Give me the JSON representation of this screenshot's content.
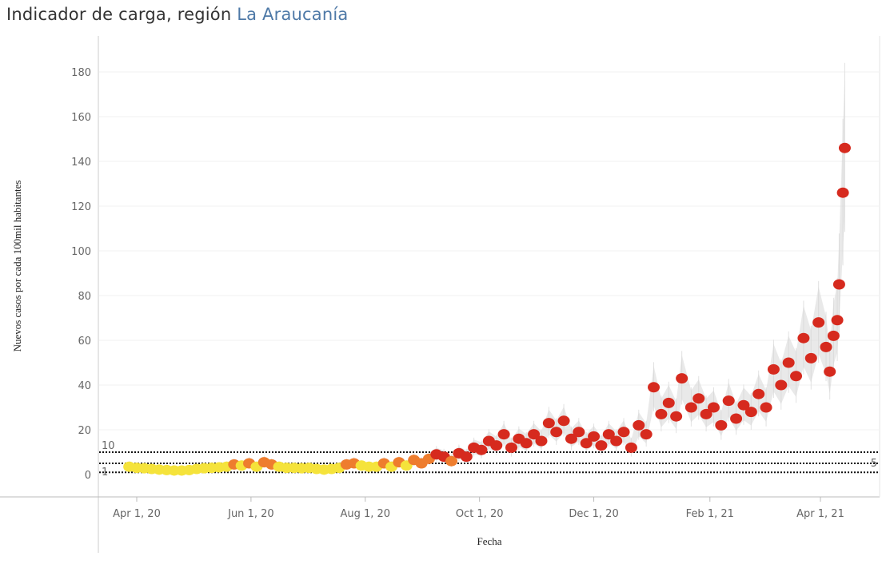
{
  "header": {
    "title_prefix": "Indicador de carga, región ",
    "region": "La Araucanía"
  },
  "chart_data": {
    "type": "scatter",
    "title": "Indicador de carga, región La Araucanía",
    "xlabel": "Fecha",
    "ylabel": "Nuevos casos por cada 100mil habitantes",
    "ylim": [
      -10,
      190
    ],
    "yticks": [
      0,
      20,
      40,
      60,
      80,
      100,
      120,
      140,
      160,
      180
    ],
    "xlim": [
      "2020-03-10",
      "2021-04-30"
    ],
    "xticks": [
      {
        "date": "2020-04-01",
        "label": "Apr 1, 20"
      },
      {
        "date": "2020-06-01",
        "label": "Jun 1, 20"
      },
      {
        "date": "2020-08-01",
        "label": "Aug 1, 20"
      },
      {
        "date": "2020-10-01",
        "label": "Oct 1, 20"
      },
      {
        "date": "2020-12-01",
        "label": "Dec 1, 20"
      },
      {
        "date": "2021-02-01",
        "label": "Feb 1, 21"
      },
      {
        "date": "2021-04-01",
        "label": "Apr 1, 21"
      }
    ],
    "grid": true,
    "reference_lines": [
      {
        "value": 10,
        "label": "10",
        "side": "left"
      },
      {
        "value": 5,
        "label": "5",
        "side": "right"
      },
      {
        "value": 1,
        "label": "1",
        "side": "left"
      }
    ],
    "color_scale": {
      "low": "#f5e33b",
      "mid": "#ee7d2e",
      "high": "#d62a1e",
      "band": "#d3d3d3"
    },
    "points": [
      [
        "2020-03-28",
        3.5
      ],
      [
        "2020-04-01",
        3
      ],
      [
        "2020-04-05",
        2.8
      ],
      [
        "2020-04-09",
        2.5
      ],
      [
        "2020-04-13",
        2.2
      ],
      [
        "2020-04-17",
        2
      ],
      [
        "2020-04-21",
        1.8
      ],
      [
        "2020-04-25",
        1.8
      ],
      [
        "2020-04-29",
        2
      ],
      [
        "2020-05-03",
        2.5
      ],
      [
        "2020-05-07",
        2.8
      ],
      [
        "2020-05-11",
        3
      ],
      [
        "2020-05-15",
        3.2
      ],
      [
        "2020-05-19",
        3.5
      ],
      [
        "2020-05-23",
        4.5
      ],
      [
        "2020-05-27",
        4
      ],
      [
        "2020-05-31",
        5
      ],
      [
        "2020-06-04",
        3.5
      ],
      [
        "2020-06-08",
        5.5
      ],
      [
        "2020-06-12",
        4.5
      ],
      [
        "2020-06-16",
        3.5
      ],
      [
        "2020-06-20",
        3
      ],
      [
        "2020-06-24",
        3
      ],
      [
        "2020-06-28",
        2.8
      ],
      [
        "2020-07-02",
        3
      ],
      [
        "2020-07-06",
        2.5
      ],
      [
        "2020-07-10",
        2.2
      ],
      [
        "2020-07-14",
        2.5
      ],
      [
        "2020-07-18",
        3
      ],
      [
        "2020-07-22",
        4.5
      ],
      [
        "2020-07-26",
        5
      ],
      [
        "2020-07-30",
        4
      ],
      [
        "2020-08-03",
        3.5
      ],
      [
        "2020-08-07",
        3.5
      ],
      [
        "2020-08-11",
        5
      ],
      [
        "2020-08-15",
        3.5
      ],
      [
        "2020-08-19",
        5.5
      ],
      [
        "2020-08-23",
        4
      ],
      [
        "2020-08-27",
        6.5
      ],
      [
        "2020-08-31",
        5
      ],
      [
        "2020-09-04",
        7
      ],
      [
        "2020-09-08",
        9
      ],
      [
        "2020-09-12",
        8
      ],
      [
        "2020-09-16",
        6
      ],
      [
        "2020-09-20",
        9.5
      ],
      [
        "2020-09-24",
        8
      ],
      [
        "2020-09-28",
        12
      ],
      [
        "2020-10-02",
        11
      ],
      [
        "2020-10-06",
        15
      ],
      [
        "2020-10-10",
        13
      ],
      [
        "2020-10-14",
        18
      ],
      [
        "2020-10-18",
        12
      ],
      [
        "2020-10-22",
        16
      ],
      [
        "2020-10-26",
        14
      ],
      [
        "2020-10-30",
        18
      ],
      [
        "2020-11-03",
        15
      ],
      [
        "2020-11-07",
        23
      ],
      [
        "2020-11-11",
        19
      ],
      [
        "2020-11-15",
        24
      ],
      [
        "2020-11-19",
        16
      ],
      [
        "2020-11-23",
        19
      ],
      [
        "2020-11-27",
        14
      ],
      [
        "2020-12-01",
        17
      ],
      [
        "2020-12-05",
        13
      ],
      [
        "2020-12-09",
        18
      ],
      [
        "2020-12-13",
        15
      ],
      [
        "2020-12-17",
        19
      ],
      [
        "2020-12-21",
        12
      ],
      [
        "2020-12-25",
        22
      ],
      [
        "2020-12-29",
        18
      ],
      [
        "2021-01-02",
        39
      ],
      [
        "2021-01-06",
        27
      ],
      [
        "2021-01-10",
        32
      ],
      [
        "2021-01-14",
        26
      ],
      [
        "2021-01-17",
        43
      ],
      [
        "2021-01-22",
        30
      ],
      [
        "2021-01-26",
        34
      ],
      [
        "2021-01-30",
        27
      ],
      [
        "2021-02-03",
        30
      ],
      [
        "2021-02-07",
        22
      ],
      [
        "2021-02-11",
        33
      ],
      [
        "2021-02-15",
        25
      ],
      [
        "2021-02-19",
        31
      ],
      [
        "2021-02-23",
        28
      ],
      [
        "2021-02-27",
        36
      ],
      [
        "2021-03-03",
        30
      ],
      [
        "2021-03-07",
        47
      ],
      [
        "2021-03-11",
        40
      ],
      [
        "2021-03-15",
        50
      ],
      [
        "2021-03-19",
        44
      ],
      [
        "2021-03-23",
        61
      ],
      [
        "2021-03-27",
        52
      ],
      [
        "2021-03-31",
        68
      ],
      [
        "2021-04-04",
        57
      ],
      [
        "2021-04-06",
        46
      ],
      [
        "2021-04-08",
        62
      ],
      [
        "2021-04-10",
        69
      ],
      [
        "2021-04-11",
        85
      ],
      [
        "2021-04-13",
        126
      ],
      [
        "2021-04-14",
        146
      ]
    ]
  }
}
